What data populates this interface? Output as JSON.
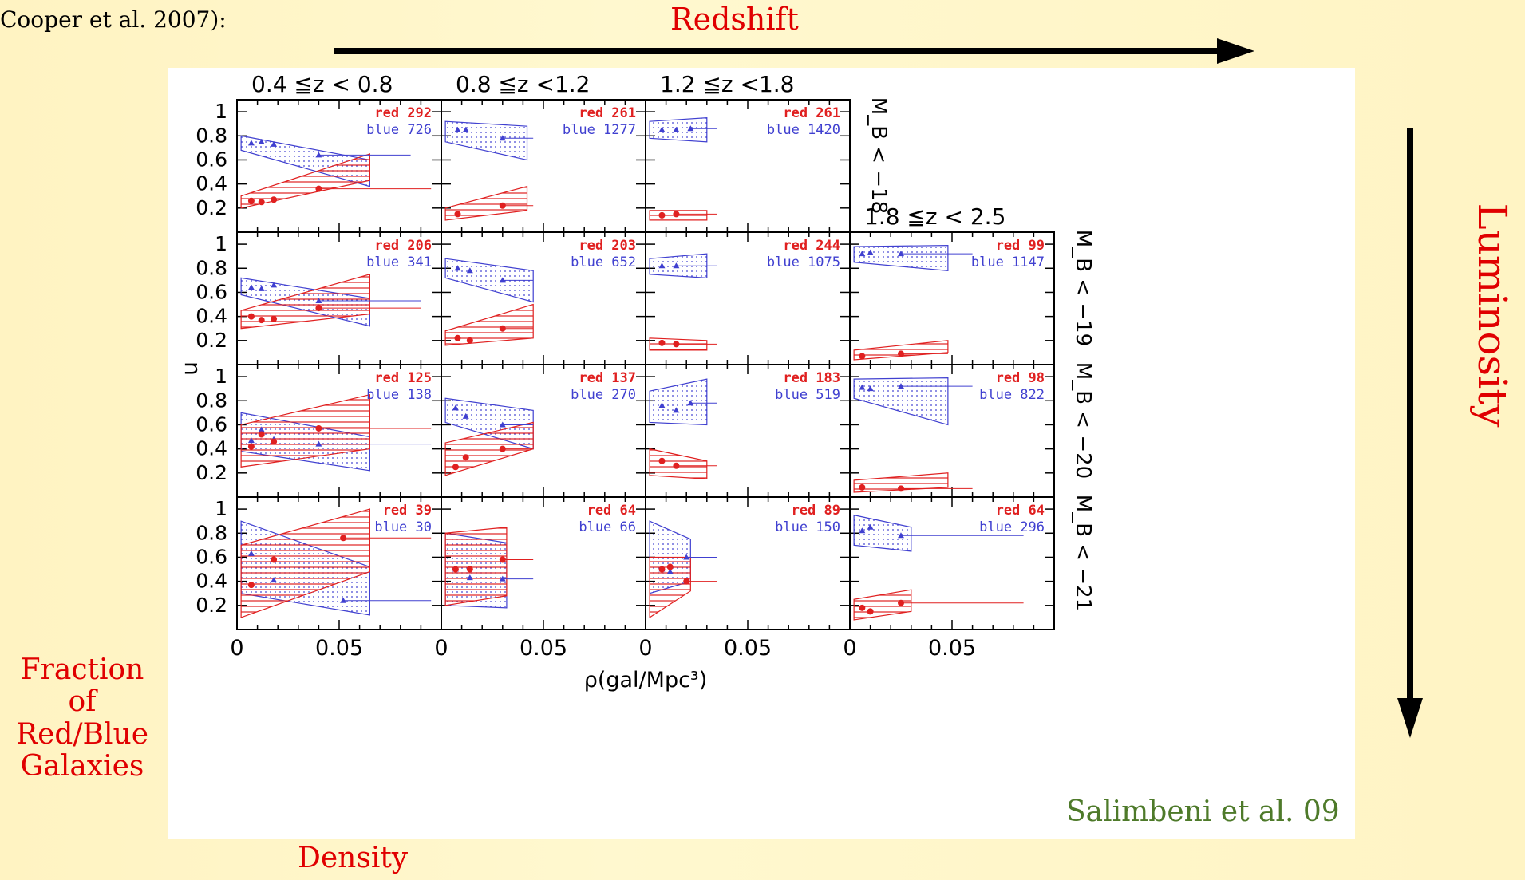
{
  "slide": {
    "citation_text": "Cooper et al. 2007):",
    "redshift_label": "Redshift",
    "luminosity_label": "Luminosity",
    "fraction_label": [
      "Fraction",
      "of",
      "Red/Blue",
      "Galaxies"
    ],
    "density_label": "Density",
    "credit_label": "Salimbeni et al. 09"
  },
  "colors": {
    "red": "#e02020",
    "blue": "#4040d0",
    "accent_text": "#e00000",
    "credit": "#4e7a2a"
  },
  "chart_data": {
    "type": "line",
    "x_axis_label": "ρ(gal/Mpc³)",
    "y_axis_label": "n",
    "xlim": [
      0,
      0.1
    ],
    "ylim": [
      0,
      1.1
    ],
    "x_ticks": [
      "0",
      "0.05"
    ],
    "y_ticks": [
      "0.2",
      "0.4",
      "0.6",
      "0.8",
      "1"
    ],
    "columns": [
      "0.4 ≦z < 0.8",
      "0.8 ≦z <1.2",
      "1.2 ≦z <1.8",
      "1.8 ≦z < 2.5"
    ],
    "rows": [
      "M_B < −18",
      "M_B < −19",
      "M_B < −20",
      "M_B < −21"
    ],
    "panels": [
      {
        "col": 0,
        "row": 0,
        "red_n": "292",
        "blue_n": "726",
        "red": {
          "x": [
            0.007,
            0.012,
            0.018,
            0.04
          ],
          "y": [
            0.26,
            0.25,
            0.27,
            0.36
          ],
          "band_x": [
            0.002,
            0.065
          ],
          "band_lo": [
            0.2,
            0.43
          ],
          "band_hi": [
            0.3,
            0.65
          ],
          "line_end": 0.095
        },
        "blue": {
          "x": [
            0.007,
            0.012,
            0.018,
            0.04
          ],
          "y": [
            0.74,
            0.75,
            0.73,
            0.64
          ],
          "band_x": [
            0.002,
            0.065
          ],
          "band_lo": [
            0.68,
            0.38
          ],
          "band_hi": [
            0.8,
            0.6
          ],
          "line_end": 0.085
        }
      },
      {
        "col": 1,
        "row": 0,
        "red_n": "261",
        "blue_n": "1277",
        "red": {
          "x": [
            0.008,
            0.03
          ],
          "y": [
            0.15,
            0.22
          ],
          "band_x": [
            0.002,
            0.042
          ],
          "band_lo": [
            0.1,
            0.18
          ],
          "band_hi": [
            0.2,
            0.38
          ],
          "line_end": 0.045
        },
        "blue": {
          "x": [
            0.008,
            0.012,
            0.03
          ],
          "y": [
            0.85,
            0.85,
            0.78
          ],
          "band_x": [
            0.002,
            0.042
          ],
          "band_lo": [
            0.75,
            0.6
          ],
          "band_hi": [
            0.92,
            0.88
          ],
          "line_end": 0.045
        }
      },
      {
        "col": 2,
        "row": 0,
        "red_n": "261",
        "blue_n": "1420",
        "red": {
          "x": [
            0.008,
            0.015
          ],
          "y": [
            0.14,
            0.15
          ],
          "band_x": [
            0.002,
            0.03
          ],
          "band_lo": [
            0.1,
            0.1
          ],
          "band_hi": [
            0.18,
            0.18
          ],
          "line_end": 0.035
        },
        "blue": {
          "x": [
            0.008,
            0.015,
            0.022
          ],
          "y": [
            0.85,
            0.85,
            0.86
          ],
          "band_x": [
            0.002,
            0.03
          ],
          "band_lo": [
            0.78,
            0.75
          ],
          "band_hi": [
            0.92,
            0.95
          ],
          "line_end": 0.035
        }
      },
      {
        "col": 0,
        "row": 1,
        "red_n": "206",
        "blue_n": "341",
        "red": {
          "x": [
            0.007,
            0.012,
            0.018,
            0.04
          ],
          "y": [
            0.4,
            0.37,
            0.38,
            0.47
          ],
          "band_x": [
            0.002,
            0.065
          ],
          "band_lo": [
            0.3,
            0.42
          ],
          "band_hi": [
            0.45,
            0.75
          ],
          "line_end": 0.09
        },
        "blue": {
          "x": [
            0.007,
            0.012,
            0.018,
            0.04
          ],
          "y": [
            0.64,
            0.63,
            0.66,
            0.53
          ],
          "band_x": [
            0.002,
            0.065
          ],
          "band_lo": [
            0.58,
            0.32
          ],
          "band_hi": [
            0.72,
            0.55
          ],
          "line_end": 0.09
        }
      },
      {
        "col": 1,
        "row": 1,
        "red_n": "203",
        "blue_n": "652",
        "red": {
          "x": [
            0.008,
            0.014,
            0.03
          ],
          "y": [
            0.22,
            0.2,
            0.3
          ],
          "band_x": [
            0.002,
            0.045
          ],
          "band_lo": [
            0.16,
            0.22
          ],
          "band_hi": [
            0.28,
            0.5
          ],
          "line_end": 0.045
        },
        "blue": {
          "x": [
            0.008,
            0.014,
            0.03
          ],
          "y": [
            0.8,
            0.78,
            0.7
          ],
          "band_x": [
            0.002,
            0.045
          ],
          "band_lo": [
            0.72,
            0.52
          ],
          "band_hi": [
            0.88,
            0.78
          ],
          "line_end": 0.045
        }
      },
      {
        "col": 2,
        "row": 1,
        "red_n": "244",
        "blue_n": "1075",
        "red": {
          "x": [
            0.008,
            0.015
          ],
          "y": [
            0.18,
            0.17
          ],
          "band_x": [
            0.002,
            0.03
          ],
          "band_lo": [
            0.12,
            0.12
          ],
          "band_hi": [
            0.22,
            0.2
          ],
          "line_end": 0.035
        },
        "blue": {
          "x": [
            0.008,
            0.015
          ],
          "y": [
            0.82,
            0.82
          ],
          "band_x": [
            0.002,
            0.03
          ],
          "band_lo": [
            0.75,
            0.72
          ],
          "band_hi": [
            0.88,
            0.92
          ],
          "line_end": 0.035
        }
      },
      {
        "col": 3,
        "row": 1,
        "red_n": "99",
        "blue_n": "1147",
        "red": {
          "x": [
            0.006,
            0.025
          ],
          "y": [
            0.07,
            0.09
          ],
          "band_x": [
            0.002,
            0.048
          ],
          "band_lo": [
            0.04,
            0.1
          ],
          "band_hi": [
            0.12,
            0.2
          ],
          "line_end": 0.048
        },
        "blue": {
          "x": [
            0.006,
            0.01,
            0.025
          ],
          "y": [
            0.92,
            0.93,
            0.92
          ],
          "band_x": [
            0.002,
            0.048
          ],
          "band_lo": [
            0.85,
            0.78
          ],
          "band_hi": [
            0.98,
            0.99
          ],
          "line_end": 0.06
        }
      },
      {
        "col": 0,
        "row": 2,
        "red_n": "125",
        "blue_n": "138",
        "red": {
          "x": [
            0.007,
            0.012,
            0.018,
            0.04
          ],
          "y": [
            0.42,
            0.52,
            0.46,
            0.57
          ],
          "band_x": [
            0.002,
            0.065
          ],
          "band_lo": [
            0.25,
            0.4
          ],
          "band_hi": [
            0.6,
            0.85
          ],
          "line_end": 0.095
        },
        "blue": {
          "x": [
            0.007,
            0.012,
            0.018,
            0.04
          ],
          "y": [
            0.47,
            0.56,
            0.48,
            0.44
          ],
          "band_x": [
            0.002,
            0.065
          ],
          "band_lo": [
            0.38,
            0.22
          ],
          "band_hi": [
            0.7,
            0.5
          ],
          "line_end": 0.095
        }
      },
      {
        "col": 1,
        "row": 2,
        "red_n": "137",
        "blue_n": "270",
        "red": {
          "x": [
            0.007,
            0.012,
            0.03
          ],
          "y": [
            0.25,
            0.33,
            0.4
          ],
          "band_x": [
            0.002,
            0.045
          ],
          "band_lo": [
            0.18,
            0.4
          ],
          "band_hi": [
            0.45,
            0.62
          ],
          "line_end": 0.045
        },
        "blue": {
          "x": [
            0.007,
            0.012,
            0.03
          ],
          "y": [
            0.74,
            0.67,
            0.6
          ],
          "band_x": [
            0.002,
            0.045
          ],
          "band_lo": [
            0.62,
            0.4
          ],
          "band_hi": [
            0.82,
            0.72
          ],
          "line_end": 0.045
        }
      },
      {
        "col": 2,
        "row": 2,
        "red_n": "183",
        "blue_n": "519",
        "red": {
          "x": [
            0.008,
            0.015
          ],
          "y": [
            0.3,
            0.26
          ],
          "band_x": [
            0.002,
            0.03
          ],
          "band_lo": [
            0.18,
            0.15
          ],
          "band_hi": [
            0.4,
            0.3
          ],
          "line_end": 0.035
        },
        "blue": {
          "x": [
            0.008,
            0.015,
            0.022
          ],
          "y": [
            0.76,
            0.72,
            0.78
          ],
          "band_x": [
            0.002,
            0.03
          ],
          "band_lo": [
            0.62,
            0.6
          ],
          "band_hi": [
            0.88,
            0.98
          ],
          "line_end": 0.035
        }
      },
      {
        "col": 3,
        "row": 2,
        "red_n": "98",
        "blue_n": "822",
        "red": {
          "x": [
            0.006,
            0.025
          ],
          "y": [
            0.08,
            0.07
          ],
          "band_x": [
            0.002,
            0.048
          ],
          "band_lo": [
            0.04,
            0.08
          ],
          "band_hi": [
            0.14,
            0.2
          ],
          "line_end": 0.06
        },
        "blue": {
          "x": [
            0.006,
            0.01,
            0.025
          ],
          "y": [
            0.91,
            0.9,
            0.92
          ],
          "band_x": [
            0.002,
            0.048
          ],
          "band_lo": [
            0.82,
            0.6
          ],
          "band_hi": [
            0.98,
            0.99
          ],
          "line_end": 0.06
        }
      },
      {
        "col": 0,
        "row": 3,
        "red_n": "39",
        "blue_n": "30",
        "red": {
          "x": [
            0.007,
            0.018,
            0.052
          ],
          "y": [
            0.37,
            0.58,
            0.76
          ],
          "band_x": [
            0.002,
            0.065
          ],
          "band_lo": [
            0.1,
            0.48
          ],
          "band_hi": [
            0.7,
            1.0
          ],
          "line_end": 0.095
        },
        "blue": {
          "x": [
            0.007,
            0.018,
            0.052
          ],
          "y": [
            0.63,
            0.41,
            0.24
          ],
          "band_x": [
            0.002,
            0.065
          ],
          "band_lo": [
            0.3,
            0.12
          ],
          "band_hi": [
            0.9,
            0.52
          ],
          "line_end": 0.095
        }
      },
      {
        "col": 1,
        "row": 3,
        "red_n": "64",
        "blue_n": "66",
        "red": {
          "x": [
            0.007,
            0.014,
            0.03
          ],
          "y": [
            0.5,
            0.5,
            0.58
          ],
          "band_x": [
            0.002,
            0.032
          ],
          "band_lo": [
            0.2,
            0.28
          ],
          "band_hi": [
            0.8,
            0.85
          ],
          "line_end": 0.045
        },
        "blue": {
          "x": [
            0.007,
            0.014,
            0.03
          ],
          "y": [
            0.5,
            0.43,
            0.42
          ],
          "band_x": [
            0.002,
            0.032
          ],
          "band_lo": [
            0.2,
            0.18
          ],
          "band_hi": [
            0.8,
            0.72
          ],
          "line_end": 0.045
        }
      },
      {
        "col": 2,
        "row": 3,
        "red_n": "89",
        "blue_n": "150",
        "red": {
          "x": [
            0.008,
            0.012,
            0.02
          ],
          "y": [
            0.5,
            0.52,
            0.4
          ],
          "band_x": [
            0.002,
            0.022
          ],
          "band_lo": [
            0.1,
            0.32
          ],
          "band_hi": [
            0.6,
            0.6
          ],
          "line_end": 0.035
        },
        "blue": {
          "x": [
            0.008,
            0.012,
            0.02
          ],
          "y": [
            0.5,
            0.48,
            0.6
          ],
          "band_x": [
            0.002,
            0.022
          ],
          "band_lo": [
            0.3,
            0.4
          ],
          "band_hi": [
            0.9,
            0.75
          ],
          "line_end": 0.035
        }
      },
      {
        "col": 3,
        "row": 3,
        "red_n": "64",
        "blue_n": "296",
        "red": {
          "x": [
            0.006,
            0.01,
            0.025
          ],
          "y": [
            0.18,
            0.15,
            0.22
          ],
          "band_x": [
            0.002,
            0.03
          ],
          "band_lo": [
            0.08,
            0.15
          ],
          "band_hi": [
            0.25,
            0.33
          ],
          "line_end": 0.085
        },
        "blue": {
          "x": [
            0.006,
            0.01,
            0.025
          ],
          "y": [
            0.82,
            0.85,
            0.78
          ],
          "band_x": [
            0.002,
            0.03
          ],
          "band_lo": [
            0.7,
            0.65
          ],
          "band_hi": [
            0.95,
            0.85
          ],
          "line_end": 0.085
        }
      }
    ]
  }
}
